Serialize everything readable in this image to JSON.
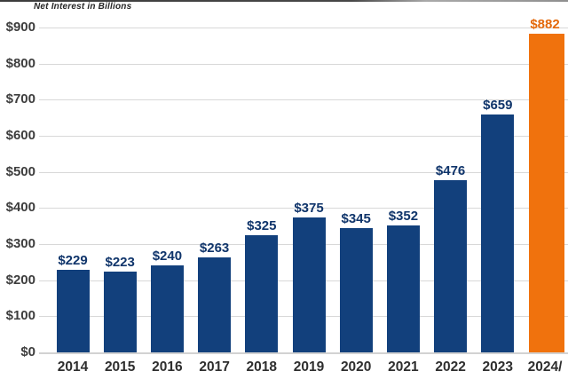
{
  "chart_data": {
    "type": "bar",
    "title": "Net Interest in Billions",
    "categories": [
      "2014",
      "2015",
      "2016",
      "2017",
      "2018",
      "2019",
      "2020",
      "2021",
      "2022",
      "2023",
      "2024/"
    ],
    "values": [
      229,
      223,
      240,
      263,
      325,
      375,
      345,
      352,
      476,
      659,
      882
    ],
    "bar_labels": [
      "$229",
      "$223",
      "$240",
      "$263",
      "$325",
      "$375",
      "$345",
      "$352",
      "$476",
      "$659",
      "$882"
    ],
    "yticks": [
      "$0",
      "$100",
      "$200",
      "$300",
      "$400",
      "$500",
      "$600",
      "$700",
      "$800",
      "$900"
    ],
    "ytick_values": [
      0,
      100,
      200,
      300,
      400,
      500,
      600,
      700,
      800,
      900
    ],
    "ylim": [
      0,
      900
    ],
    "grid": true,
    "legend": false,
    "highlight_index": 10,
    "colors": {
      "bar_default": "#12407C",
      "bar_highlight": "#F0720D",
      "bar_label_default": "#10356B",
      "bar_label_highlight": "#E4690C",
      "axis_text": "#3D3D3D",
      "x_axis_text": "#2E2E2E",
      "gridline": "#D8D8D8",
      "baseline": "#D2D2D2",
      "title_text": "#262626",
      "background": "#FFFFFF"
    }
  }
}
